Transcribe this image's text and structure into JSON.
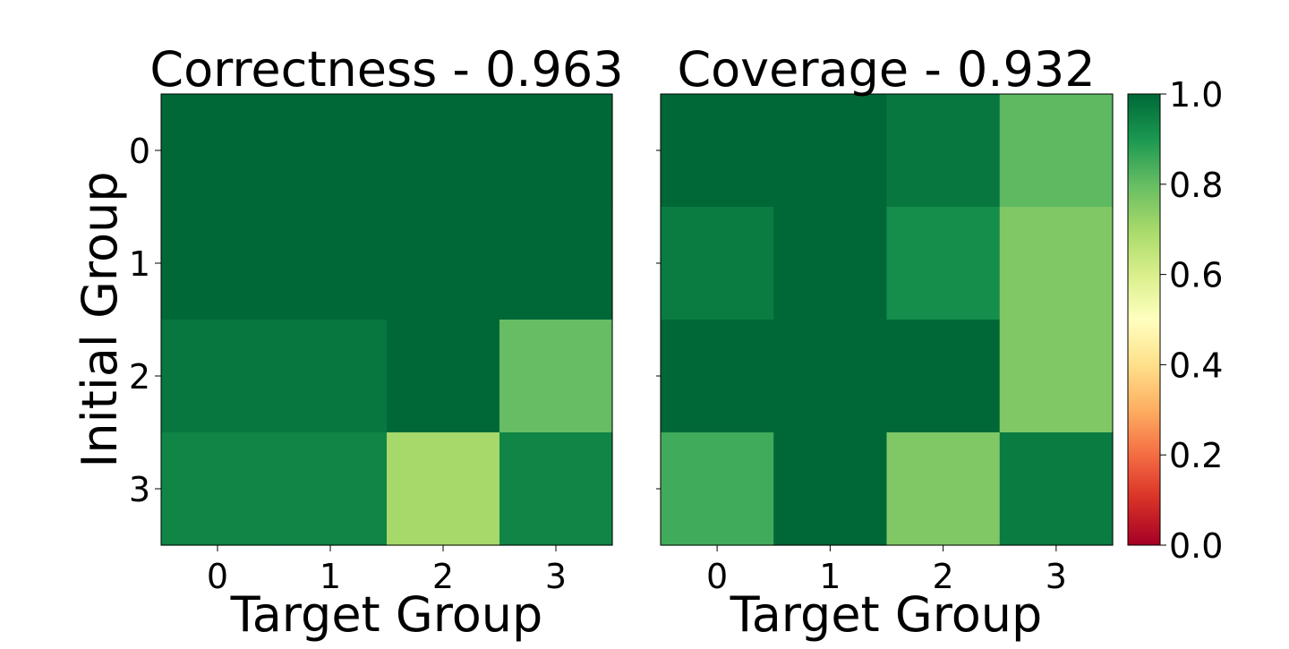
{
  "chart_data": [
    {
      "type": "heatmap",
      "title": "Correctness - 0.963",
      "xlabel": "Target Group",
      "ylabel": "Initial Group",
      "x_categories": [
        "0",
        "1",
        "2",
        "3"
      ],
      "y_categories": [
        "0",
        "1",
        "2",
        "3"
      ],
      "values": [
        [
          1.0,
          1.0,
          1.0,
          1.0
        ],
        [
          1.0,
          1.0,
          1.0,
          1.0
        ],
        [
          0.97,
          0.97,
          1.0,
          0.8
        ],
        [
          0.94,
          0.94,
          0.7,
          0.94
        ]
      ],
      "colormap": "RdYlGn",
      "vmin": 0.0,
      "vmax": 1.0
    },
    {
      "type": "heatmap",
      "title": "Coverage - 0.932",
      "xlabel": "Target Group",
      "ylabel": "",
      "x_categories": [
        "0",
        "1",
        "2",
        "3"
      ],
      "y_categories": [
        "0",
        "1",
        "2",
        "3"
      ],
      "values": [
        [
          1.0,
          1.0,
          0.97,
          0.81
        ],
        [
          0.96,
          1.0,
          0.92,
          0.76
        ],
        [
          1.0,
          1.0,
          1.0,
          0.76
        ],
        [
          0.85,
          1.0,
          0.76,
          0.96
        ]
      ],
      "colormap": "RdYlGn",
      "vmin": 0.0,
      "vmax": 1.0
    }
  ],
  "colorbar": {
    "ticks": [
      "0.0",
      "0.2",
      "0.4",
      "0.6",
      "0.8",
      "1.0"
    ],
    "tick_values": [
      0.0,
      0.2,
      0.4,
      0.6,
      0.8,
      1.0
    ]
  }
}
